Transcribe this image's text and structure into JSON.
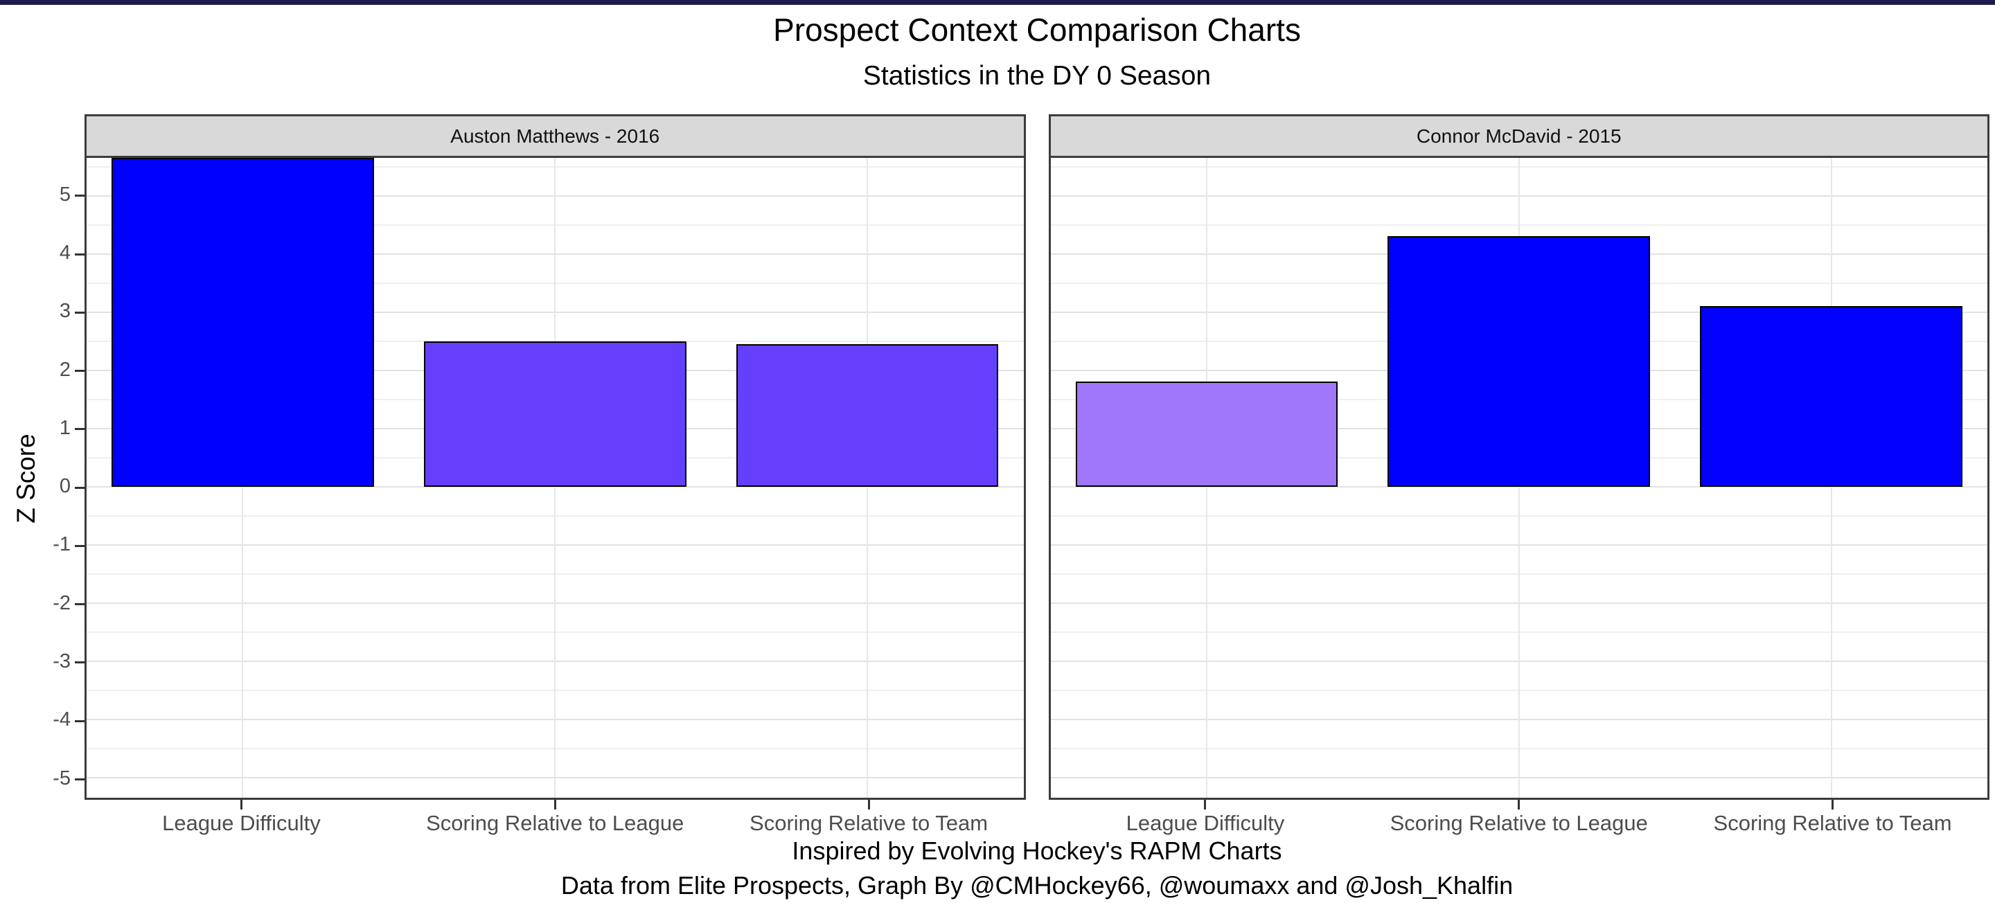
{
  "colors": {
    "top_bar": "#1c1c4e",
    "background": "#ffffff",
    "strip_fill": "#d9d9d9",
    "panel_border": "#3c3c3c",
    "grid_major": "#e2e2e2",
    "grid_minor": "#efefef",
    "axis_text": "#4d4d4d",
    "bar_border": "#000000",
    "bar_blue": "#0000ff",
    "bar_purple": "#653ffc",
    "bar_light_purple": "#a177f9"
  },
  "chart_data": {
    "type": "bar",
    "title": "Prospect Context Comparison Charts",
    "subtitle": "Statistics in the DY 0 Season",
    "ylabel": "Z Score",
    "xlabel": "",
    "categories": [
      "League Difficulty",
      "Scoring Relative to League",
      "Scoring Relative to Team"
    ],
    "y_ticks": [
      5,
      4,
      3,
      2,
      1,
      0,
      -1,
      -2,
      -3,
      -4,
      -5
    ],
    "ylim": [
      -5.35,
      5.65
    ],
    "grid": {
      "major": true,
      "minor": true,
      "vertical_at_category_centers": true
    },
    "legend": "none",
    "facets": [
      {
        "label": "Auston Matthews - 2016",
        "values": [
          5.65,
          2.5,
          2.45
        ],
        "bar_colors": [
          "#0000ff",
          "#653ffc",
          "#663ffd"
        ],
        "clipped_at_top": [
          true,
          false,
          false
        ],
        "note": "League Difficulty bar extends beyond the top of the y-axis (value > 5.6, drawn clipped at panel top)"
      },
      {
        "label": "Connor McDavid - 2015",
        "values": [
          1.8,
          4.3,
          3.1
        ],
        "bar_colors": [
          "#a177f9",
          "#0000ff",
          "#0400ff"
        ],
        "clipped_at_top": [
          false,
          false,
          false
        ],
        "note": ""
      }
    ],
    "caption_line1": "Inspired by Evolving Hockey's RAPM Charts",
    "caption_line2": "Data from Elite Prospects, Graph By @CMHockey66, @woumaxx and @Josh_Khalfin"
  }
}
